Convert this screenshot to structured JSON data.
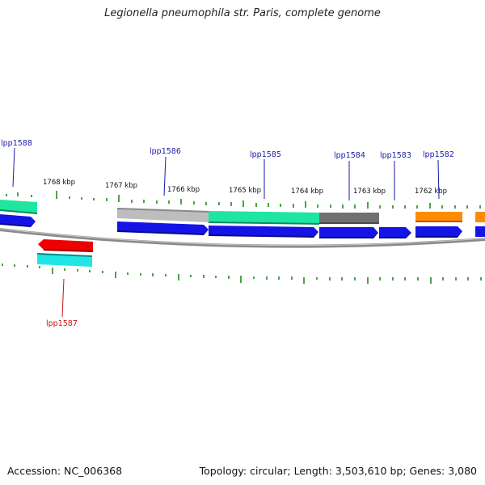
{
  "title": "Legionella pneumophila str. Paris, complete genome",
  "footer": {
    "accession": "Accession: NC_006368",
    "topology": "Topology: circular; Length: 3,503,610 bp; Genes: 3,080"
  },
  "colors": {
    "cds": "#1414e6",
    "backbone": "#8a8a8a",
    "tick": "#1e8c1e",
    "label_plus": "#1a1aa8",
    "label_minus": "#cc1111",
    "teal": "#1ee6a0",
    "light_gray": "#bdbdbd",
    "dark_gray": "#707070",
    "orange": "#ff8c00",
    "red": "#ee0000",
    "cyan": "#22e6e6"
  },
  "kbp_labels": [
    "1768 kbp",
    "1767 kbp",
    "1766 kbp",
    "1765 kbp",
    "1764 kbp",
    "1763 kbp",
    "1762 kbp"
  ],
  "gene_labels": [
    {
      "name": "lpp1588",
      "strand": "+"
    },
    {
      "name": "lpp1587",
      "strand": "-"
    },
    {
      "name": "lpp1586",
      "strand": "+"
    },
    {
      "name": "lpp1585",
      "strand": "+"
    },
    {
      "name": "lpp1584",
      "strand": "+"
    },
    {
      "name": "lpp1583",
      "strand": "+"
    },
    {
      "name": "lpp1582",
      "strand": "+"
    }
  ]
}
